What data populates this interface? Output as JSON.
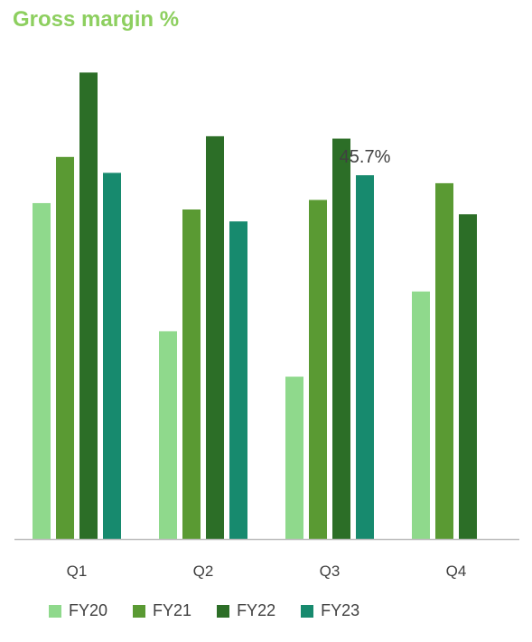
{
  "chart_data": {
    "type": "bar",
    "title": "Gross margin %",
    "xlabel": "",
    "ylabel": "",
    "categories": [
      "Q1",
      "Q2",
      "Q3",
      "Q4"
    ],
    "series": [
      {
        "name": "FY20",
        "color": "#8fd98c",
        "values": [
          42.2,
          26.1,
          20.4,
          31.1
        ]
      },
      {
        "name": "FY21",
        "color": "#5a9a33",
        "values": [
          48.0,
          41.4,
          42.6,
          44.7
        ]
      },
      {
        "name": "FY22",
        "color": "#2c6e27",
        "values": [
          58.6,
          50.6,
          50.3,
          40.8
        ]
      },
      {
        "name": "FY23",
        "color": "#178a6e",
        "values": [
          46.0,
          39.9,
          45.7,
          null
        ]
      }
    ],
    "data_labels": [
      {
        "series": "FY23",
        "category": "Q3",
        "text": "45.7%"
      }
    ],
    "ylim": [
      0,
      60
    ],
    "grid": false,
    "legend": "bottom"
  }
}
